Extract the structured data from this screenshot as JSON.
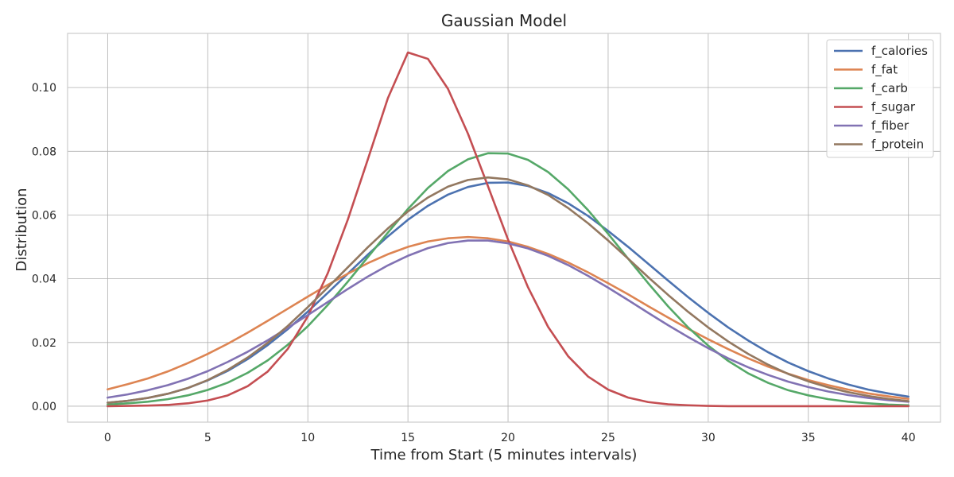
{
  "chart_data": {
    "type": "line",
    "title": "Gaussian Model",
    "xlabel": "Time from Start (5 minutes intervals)",
    "ylabel": "Distribution",
    "xlim": [
      -2,
      41.6
    ],
    "ylim": [
      -0.005,
      0.117
    ],
    "xticks": [
      0,
      5,
      10,
      15,
      20,
      25,
      30,
      35,
      40
    ],
    "yticks": [
      0.0,
      0.02,
      0.04,
      0.06,
      0.08,
      0.1
    ],
    "ytick_labels": [
      "0.00",
      "0.02",
      "0.04",
      "0.06",
      "0.08",
      "0.10"
    ],
    "grid": true,
    "legend": "top-right",
    "x": [
      0,
      1,
      2,
      3,
      4,
      5,
      6,
      7,
      8,
      9,
      10,
      11,
      12,
      13,
      14,
      15,
      16,
      17,
      18,
      19,
      20,
      21,
      22,
      23,
      24,
      25,
      26,
      27,
      28,
      29,
      30,
      31,
      32,
      33,
      34,
      35,
      36,
      37,
      38,
      39,
      40
    ],
    "series": [
      {
        "name": "f_calories",
        "color": "#4c72b0",
        "values": [
          0.0011,
          0.0017,
          0.0026,
          0.0039,
          0.0057,
          0.0081,
          0.0111,
          0.0148,
          0.0192,
          0.0242,
          0.0297,
          0.0356,
          0.0416,
          0.0476,
          0.0533,
          0.0585,
          0.0629,
          0.0664,
          0.0688,
          0.0701,
          0.0702,
          0.0691,
          0.0669,
          0.0637,
          0.0597,
          0.055,
          0.05,
          0.0447,
          0.0394,
          0.0342,
          0.0293,
          0.0247,
          0.0206,
          0.0169,
          0.0137,
          0.011,
          0.0087,
          0.0068,
          0.0052,
          0.004,
          0.003
        ]
      },
      {
        "name": "f_fat",
        "color": "#dd8452",
        "values": [
          0.0053,
          0.0069,
          0.0087,
          0.0109,
          0.0135,
          0.0164,
          0.0196,
          0.0231,
          0.0268,
          0.0306,
          0.0344,
          0.0381,
          0.0416,
          0.0449,
          0.0477,
          0.05,
          0.0517,
          0.0527,
          0.0531,
          0.0527,
          0.0517,
          0.05,
          0.0478,
          0.0451,
          0.042,
          0.0386,
          0.0351,
          0.0314,
          0.0278,
          0.0243,
          0.021,
          0.0179,
          0.015,
          0.0124,
          0.0102,
          0.0082,
          0.0066,
          0.0052,
          0.004,
          0.0031,
          0.0023
        ]
      },
      {
        "name": "f_carb",
        "color": "#55a868",
        "values": [
          0.0005,
          0.0009,
          0.0014,
          0.0022,
          0.0034,
          0.0051,
          0.0074,
          0.0105,
          0.0144,
          0.0193,
          0.0251,
          0.0318,
          0.0391,
          0.0468,
          0.0545,
          0.0619,
          0.0685,
          0.0738,
          0.0775,
          0.0794,
          0.0793,
          0.0773,
          0.0735,
          0.0681,
          0.0615,
          0.0541,
          0.0463,
          0.0386,
          0.0313,
          0.0247,
          0.019,
          0.0142,
          0.0103,
          0.0073,
          0.005,
          0.0034,
          0.0022,
          0.0014,
          0.0009,
          0.0005,
          0.0003
        ]
      },
      {
        "name": "f_sugar",
        "color": "#c44e52",
        "values": [
          0.0,
          0.0001,
          0.0002,
          0.0004,
          0.0009,
          0.0018,
          0.0034,
          0.0063,
          0.0109,
          0.018,
          0.0282,
          0.0418,
          0.0586,
          0.0775,
          0.0967,
          0.111,
          0.109,
          0.0996,
          0.0855,
          0.069,
          0.0523,
          0.0373,
          0.0249,
          0.0157,
          0.0093,
          0.0052,
          0.0027,
          0.0013,
          0.0006,
          0.0003,
          0.0001,
          0.0,
          0.0,
          0.0,
          0.0,
          0.0,
          0.0,
          0.0,
          0.0,
          0.0,
          0.0
        ]
      },
      {
        "name": "f_fiber",
        "color": "#8172b3",
        "values": [
          0.0027,
          0.0037,
          0.005,
          0.0066,
          0.0086,
          0.011,
          0.0139,
          0.0171,
          0.0207,
          0.0246,
          0.0286,
          0.0327,
          0.0368,
          0.0407,
          0.0442,
          0.0472,
          0.0496,
          0.0512,
          0.052,
          0.052,
          0.0511,
          0.0495,
          0.0472,
          0.0443,
          0.0409,
          0.0372,
          0.0333,
          0.0293,
          0.0254,
          0.0217,
          0.0182,
          0.015,
          0.0122,
          0.0098,
          0.0077,
          0.006,
          0.0046,
          0.0035,
          0.0026,
          0.0019,
          0.0014
        ]
      },
      {
        "name": "f_protein",
        "color": "#937860",
        "values": [
          0.0011,
          0.0017,
          0.0026,
          0.0039,
          0.0057,
          0.0082,
          0.0114,
          0.0153,
          0.0199,
          0.0252,
          0.0311,
          0.0373,
          0.0436,
          0.0499,
          0.0558,
          0.0611,
          0.0655,
          0.0689,
          0.071,
          0.0718,
          0.0712,
          0.0693,
          0.0663,
          0.0622,
          0.0574,
          0.052,
          0.0463,
          0.0405,
          0.0349,
          0.0296,
          0.0247,
          0.0203,
          0.0164,
          0.013,
          0.0101,
          0.0078,
          0.0059,
          0.0044,
          0.0032,
          0.0023,
          0.0016
        ]
      }
    ]
  }
}
